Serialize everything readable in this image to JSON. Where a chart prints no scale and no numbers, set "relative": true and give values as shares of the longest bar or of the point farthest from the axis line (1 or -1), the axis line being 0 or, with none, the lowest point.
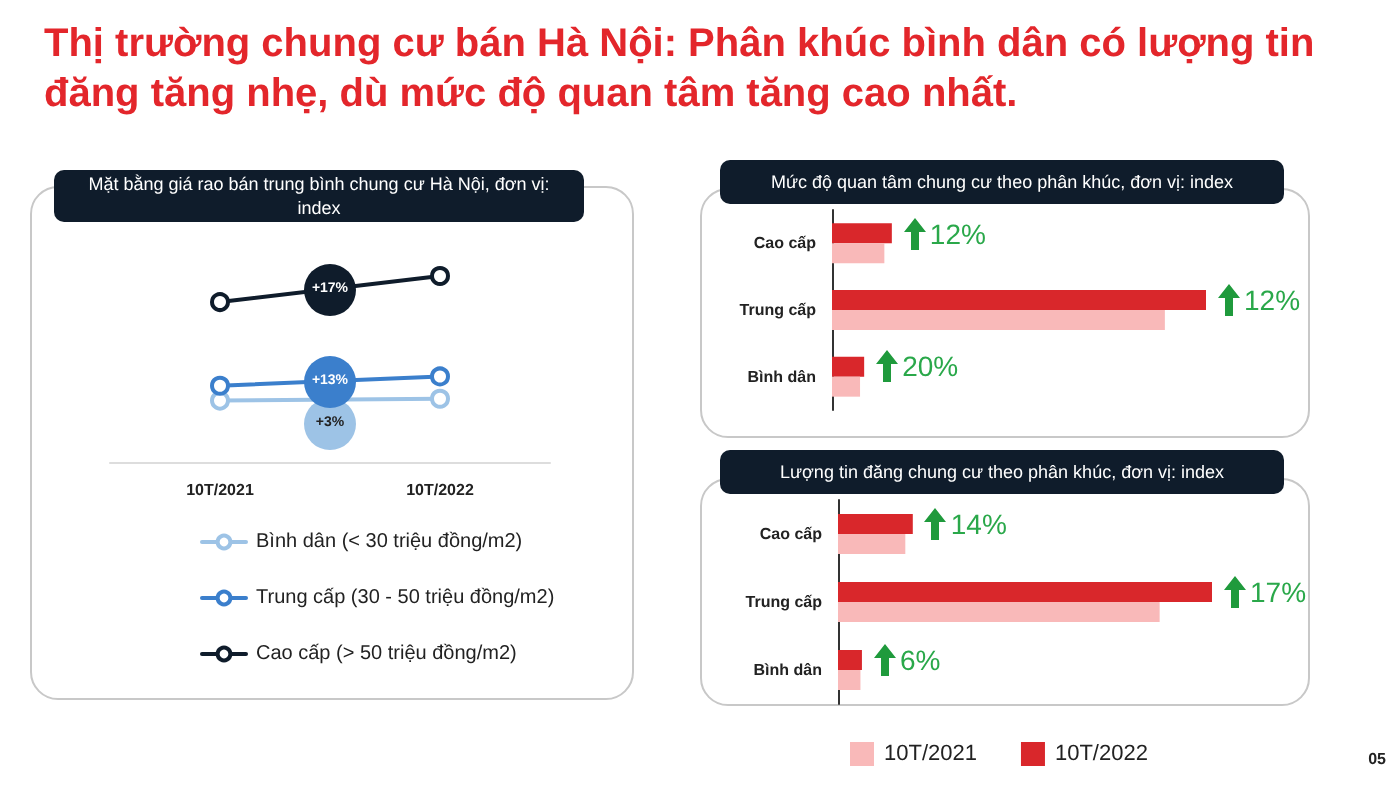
{
  "chart_data": [
    {
      "type": "line",
      "title": "Thị trường chung cư bán Hà Nội: Phân khúc bình dân có lượng tin đăng tăng nhẹ, dù mức độ quan tâm tăng cao nhất.",
      "subtitle": "Mặt bằng giá rao bán trung bình chung cư Hà Nội, đơn vị: index",
      "relative": true,
      "categories": [
        "10T/2021",
        "10T/2022"
      ],
      "series": [
        {
          "name": "Bình dân (< 30 triệu đồng/m2)",
          "color": "#9dc3e6",
          "values": [
            0.33,
            0.34
          ]
        },
        {
          "name": "Trung cấp (30 - 50 triệu đồng/m2)",
          "color": "#3b7fcc",
          "values": [
            0.41,
            0.46
          ]
        },
        {
          "name": "Cao cấp (> 50 triệu đồng/m2)",
          "color": "#0f1c2b",
          "values": [
            0.86,
            1
          ]
        }
      ],
      "annotations": [
        "+3%",
        "+13%",
        "+17%"
      ],
      "marker": "circle",
      "legend": "bottom"
    },
    {
      "type": "bar",
      "orientation": "horizontal",
      "relative": true,
      "title": "Mức độ quan tâm chung cư theo phân khúc, đơn vị: index",
      "categories": [
        "Cao cấp",
        "Trung cấp",
        "Bình dân"
      ],
      "series": [
        {
          "color": "#f9b9b9",
          "values": [
            0.14,
            0.89,
            0.075
          ]
        },
        {
          "color": "#d9272b",
          "values": [
            0.16,
            1,
            0.086
          ]
        }
      ],
      "annotations": [
        {
          "text": "12%",
          "x": 0.16,
          "y": "Cao cấp"
        },
        {
          "text": "12%",
          "x": 1,
          "y": "Trung cấp"
        },
        {
          "text": "20%",
          "x": 0.086,
          "y": "Bình dân"
        }
      ]
    },
    {
      "type": "bar",
      "orientation": "horizontal",
      "relative": true,
      "title": "Lượng tin đăng chung cư theo phân khúc, đơn vị: index",
      "categories": [
        "Cao cấp",
        "Trung cấp",
        "Bình dân"
      ],
      "series": [
        {
          "name": "10T/2021",
          "color": "#f9b9b9",
          "values": [
            0.18,
            0.86,
            0.06
          ]
        },
        {
          "name": "10T/2022",
          "color": "#d9272b",
          "values": [
            0.2,
            1,
            0.064
          ]
        }
      ],
      "legend": "bottom",
      "annotations": [
        {
          "text": "14%",
          "x": 0.2,
          "y": "Cao cấp"
        },
        {
          "text": "17%",
          "x": 1,
          "y": "Trung cấp"
        },
        {
          "text": "6%",
          "x": 0.064,
          "y": "Bình dân"
        },
        "05"
      ]
    }
  ]
}
